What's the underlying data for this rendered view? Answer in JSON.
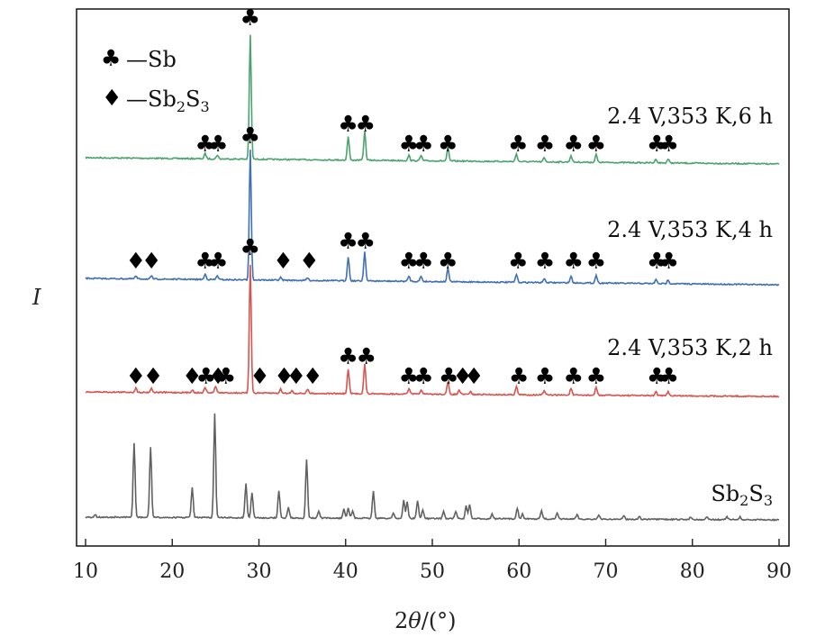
{
  "chart_data": {
    "type": "line",
    "xlabel_prefix": "2",
    "xlabel_var": "θ",
    "xlabel_suffix": "/(°)",
    "ylabel": "I",
    "xlim": [
      9.5,
      90.5
    ],
    "xticks": [
      "10",
      "20",
      "30",
      "40",
      "50",
      "60",
      "70",
      "80",
      "90"
    ],
    "legend": [
      {
        "symbol": "♣",
        "label": "—Sb"
      },
      {
        "symbol": "♦",
        "label_main": "—Sb",
        "sub1": "2",
        "mid": "S",
        "sub2": "3"
      }
    ],
    "series": [
      {
        "name": "2.4 V,353 K,6 h",
        "color": "#4aa36c",
        "peaks": [
          [
            23.8,
            4
          ],
          [
            25.2,
            3
          ],
          [
            29.0,
            95
          ],
          [
            40.3,
            18
          ],
          [
            42.2,
            22
          ],
          [
            47.3,
            4
          ],
          [
            48.7,
            4
          ],
          [
            51.8,
            10
          ],
          [
            59.7,
            6
          ],
          [
            62.9,
            3
          ],
          [
            66.0,
            5
          ],
          [
            68.9,
            6
          ],
          [
            75.8,
            3
          ],
          [
            77.2,
            3
          ]
        ],
        "markers": [
          {
            "x": 23.8,
            "s": "♣"
          },
          {
            "x": 25.3,
            "s": "♣"
          },
          {
            "x": 29.0,
            "s": "♣"
          },
          {
            "x": 40.3,
            "s": "♣"
          },
          {
            "x": 42.3,
            "s": "♣"
          },
          {
            "x": 47.3,
            "s": "♣"
          },
          {
            "x": 49.0,
            "s": "♣"
          },
          {
            "x": 51.8,
            "s": "♣"
          },
          {
            "x": 59.9,
            "s": "♣"
          },
          {
            "x": 63.0,
            "s": "♣"
          },
          {
            "x": 66.3,
            "s": "♣"
          },
          {
            "x": 68.9,
            "s": "♣"
          },
          {
            "x": 75.9,
            "s": "♣"
          },
          {
            "x": 77.3,
            "s": "♣"
          }
        ]
      },
      {
        "name": "2.4 V,353 K,4 h",
        "color": "#3f6fb5",
        "peaks": [
          [
            15.8,
            2
          ],
          [
            17.6,
            2
          ],
          [
            23.8,
            4
          ],
          [
            25.2,
            3
          ],
          [
            29.0,
            98
          ],
          [
            32.5,
            2
          ],
          [
            35.6,
            2
          ],
          [
            40.3,
            18
          ],
          [
            42.2,
            22
          ],
          [
            47.3,
            4
          ],
          [
            48.7,
            4
          ],
          [
            51.8,
            10
          ],
          [
            59.7,
            6
          ],
          [
            62.9,
            3
          ],
          [
            66.0,
            5
          ],
          [
            68.9,
            6
          ],
          [
            75.8,
            3
          ],
          [
            77.2,
            3
          ]
        ],
        "markers": [
          {
            "x": 15.8,
            "s": "♦"
          },
          {
            "x": 17.6,
            "s": "♦"
          },
          {
            "x": 23.8,
            "s": "♣"
          },
          {
            "x": 25.3,
            "s": "♣"
          },
          {
            "x": 29.0,
            "s": "♣"
          },
          {
            "x": 32.8,
            "s": "♦"
          },
          {
            "x": 35.8,
            "s": "♦"
          },
          {
            "x": 40.3,
            "s": "♣"
          },
          {
            "x": 42.3,
            "s": "♣"
          },
          {
            "x": 47.3,
            "s": "♣"
          },
          {
            "x": 49.0,
            "s": "♣"
          },
          {
            "x": 51.8,
            "s": "♣"
          },
          {
            "x": 59.9,
            "s": "♣"
          },
          {
            "x": 63.0,
            "s": "♣"
          },
          {
            "x": 66.3,
            "s": "♣"
          },
          {
            "x": 68.9,
            "s": "♣"
          },
          {
            "x": 75.9,
            "s": "♣"
          },
          {
            "x": 77.3,
            "s": "♣"
          }
        ]
      },
      {
        "name": "2.4 V,353 K,2 h",
        "color": "#d9534f",
        "peaks": [
          [
            15.8,
            3
          ],
          [
            17.6,
            3
          ],
          [
            22.3,
            2
          ],
          [
            23.8,
            4
          ],
          [
            25.0,
            5
          ],
          [
            29.0,
            95
          ],
          [
            32.5,
            3
          ],
          [
            33.8,
            2
          ],
          [
            35.6,
            3
          ],
          [
            40.3,
            18
          ],
          [
            42.2,
            22
          ],
          [
            47.3,
            4
          ],
          [
            48.7,
            3
          ],
          [
            51.8,
            9
          ],
          [
            53.1,
            3
          ],
          [
            54.4,
            2
          ],
          [
            59.7,
            6
          ],
          [
            62.9,
            3
          ],
          [
            66.0,
            5
          ],
          [
            68.9,
            6
          ],
          [
            75.8,
            3
          ],
          [
            77.2,
            3
          ]
        ],
        "markers": [
          {
            "x": 15.8,
            "s": "♦"
          },
          {
            "x": 17.8,
            "s": "♦"
          },
          {
            "x": 22.3,
            "s": "♦"
          },
          {
            "x": 23.9,
            "s": "♣"
          },
          {
            "x": 25.3,
            "s": "♦"
          },
          {
            "x": 26.2,
            "s": "♣"
          },
          {
            "x": 30.1,
            "s": "♦"
          },
          {
            "x": 29.0,
            "s": "♣"
          },
          {
            "x": 32.9,
            "s": "♦"
          },
          {
            "x": 34.3,
            "s": "♦"
          },
          {
            "x": 36.2,
            "s": "♦"
          },
          {
            "x": 40.3,
            "s": "♣"
          },
          {
            "x": 42.4,
            "s": "♣"
          },
          {
            "x": 47.3,
            "s": "♣"
          },
          {
            "x": 49.0,
            "s": "♣"
          },
          {
            "x": 51.9,
            "s": "♣"
          },
          {
            "x": 53.5,
            "s": "♦"
          },
          {
            "x": 54.8,
            "s": "♦"
          },
          {
            "x": 60.0,
            "s": "♣"
          },
          {
            "x": 63.0,
            "s": "♣"
          },
          {
            "x": 66.3,
            "s": "♣"
          },
          {
            "x": 68.9,
            "s": "♣"
          },
          {
            "x": 75.9,
            "s": "♣"
          },
          {
            "x": 77.3,
            "s": "♣"
          }
        ]
      },
      {
        "name_main": "Sb",
        "name_sub1": "2",
        "name_mid": "S",
        "name_sub2": "3",
        "color": "#606060",
        "peaks": [
          [
            11.1,
            3
          ],
          [
            15.6,
            82
          ],
          [
            17.5,
            78
          ],
          [
            22.3,
            33
          ],
          [
            24.9,
            115
          ],
          [
            28.5,
            38
          ],
          [
            29.2,
            28
          ],
          [
            32.3,
            30
          ],
          [
            33.4,
            12
          ],
          [
            35.5,
            65
          ],
          [
            36.9,
            8
          ],
          [
            39.8,
            10
          ],
          [
            40.3,
            12
          ],
          [
            40.8,
            8
          ],
          [
            43.2,
            30
          ],
          [
            45.5,
            6
          ],
          [
            46.7,
            20
          ],
          [
            47.1,
            18
          ],
          [
            48.3,
            20
          ],
          [
            48.9,
            10
          ],
          [
            51.3,
            8
          ],
          [
            52.7,
            8
          ],
          [
            53.9,
            14
          ],
          [
            54.3,
            16
          ],
          [
            56.9,
            5
          ],
          [
            59.8,
            12
          ],
          [
            60.4,
            6
          ],
          [
            62.6,
            9
          ],
          [
            64.4,
            6
          ],
          [
            66.7,
            5
          ],
          [
            69.2,
            4
          ],
          [
            72.1,
            4
          ],
          [
            73.9,
            3
          ],
          [
            79.8,
            3
          ],
          [
            81.7,
            3
          ],
          [
            84.0,
            3
          ],
          [
            85.5,
            3
          ]
        ]
      }
    ]
  }
}
